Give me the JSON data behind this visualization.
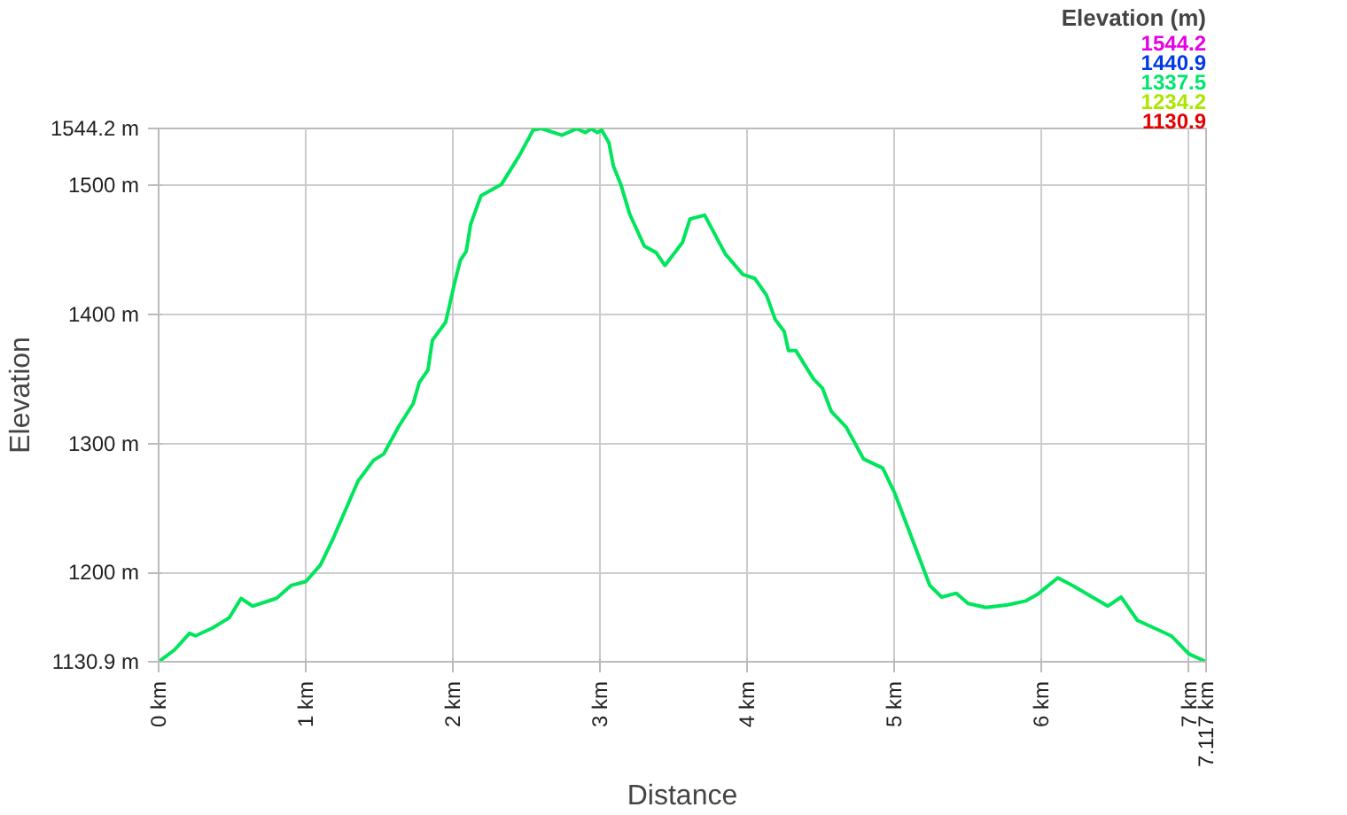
{
  "chart_data": {
    "type": "line",
    "xlabel": "Distance",
    "ylabel": "Elevation",
    "legend_title": "Elevation (m)",
    "annotations": [
      "1544.2",
      "1440.9",
      "1337.5",
      "1234.2",
      "1130.9"
    ],
    "x": [
      0,
      0.107,
      0.21,
      0.25,
      0.365,
      0.48,
      0.56,
      0.64,
      0.8,
      0.9,
      1.0,
      1.1,
      1.18,
      1.355,
      1.46,
      1.53,
      1.63,
      1.73,
      1.77,
      1.83,
      1.86,
      1.95,
      2.01,
      2.05,
      2.09,
      2.12,
      2.19,
      2.33,
      2.45,
      2.545,
      2.6,
      2.74,
      2.84,
      2.9,
      2.94,
      2.98,
      3.01,
      3.06,
      3.09,
      3.14,
      3.2,
      3.3,
      3.38,
      3.44,
      3.56,
      3.61,
      3.71,
      3.85,
      3.97,
      4.05,
      4.13,
      4.19,
      4.25,
      4.28,
      4.33,
      4.45,
      4.51,
      4.57,
      4.67,
      4.79,
      4.92,
      5.0,
      5.1,
      5.24,
      5.32,
      5.42,
      5.5,
      5.62,
      5.77,
      5.89,
      5.97,
      6.11,
      6.21,
      6.45,
      6.54,
      6.65,
      6.88,
      7.0,
      7.117
    ],
    "values": [
      1130.9,
      1140,
      1153,
      1151,
      1157,
      1165,
      1180,
      1174,
      1180,
      1190,
      1193,
      1206,
      1225,
      1271,
      1287,
      1292,
      1313,
      1331,
      1347,
      1357,
      1380,
      1394,
      1424,
      1442,
      1449,
      1470,
      1492,
      1501,
      1523,
      1543,
      1544.2,
      1539,
      1544,
      1541,
      1544,
      1541,
      1543,
      1533,
      1515,
      1501,
      1478,
      1453,
      1448,
      1438,
      1456,
      1474,
      1477,
      1447,
      1431,
      1428,
      1415,
      1396,
      1387,
      1372,
      1372,
      1350,
      1343,
      1325,
      1313,
      1288,
      1281,
      1262,
      1232,
      1190,
      1181,
      1184,
      1176,
      1173,
      1175,
      1178,
      1183,
      1196,
      1190,
      1174,
      1181,
      1163,
      1151,
      1137,
      1130.9
    ],
    "xlim": [
      0,
      7.117
    ],
    "xticks": [
      {
        "value": 0,
        "label": "0 km"
      },
      {
        "value": 1,
        "label": "1 km"
      },
      {
        "value": 2,
        "label": "2 km"
      },
      {
        "value": 3,
        "label": "3 km"
      },
      {
        "value": 4,
        "label": "4 km"
      },
      {
        "value": 5,
        "label": "5 km"
      },
      {
        "value": 6,
        "label": "6 km"
      },
      {
        "value": 7,
        "label": "7 km"
      },
      {
        "value": 7.117,
        "label": "7.117 km"
      }
    ],
    "ylim": [
      1130.9,
      1544.2
    ],
    "yticks": [
      {
        "value": 1130.9,
        "label": "1130.9 m"
      },
      {
        "value": 1200,
        "label": "1200 m"
      },
      {
        "value": 1300,
        "label": "1300 m"
      },
      {
        "value": 1400,
        "label": "1400 m"
      },
      {
        "value": 1500,
        "label": "1500 m"
      },
      {
        "value": 1544.2,
        "label": "1544.2 m"
      }
    ],
    "grid": true
  }
}
